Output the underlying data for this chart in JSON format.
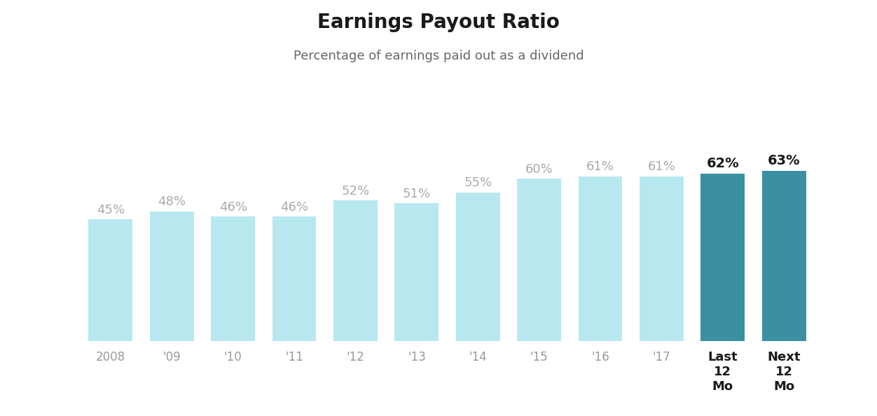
{
  "categories": [
    "2008",
    "'09",
    "'10",
    "'11",
    "'12",
    "'13",
    "'14",
    "'15",
    "'16",
    "'17",
    "Last\n12\nMo",
    "Next\n12\nMo"
  ],
  "values": [
    45,
    48,
    46,
    46,
    52,
    51,
    55,
    60,
    61,
    61,
    62,
    63
  ],
  "labels": [
    "45%",
    "48%",
    "46%",
    "46%",
    "52%",
    "51%",
    "55%",
    "60%",
    "61%",
    "61%",
    "62%",
    "63%"
  ],
  "light_blue": "#b8e8ef",
  "teal": "#3a8fa0",
  "title": "Earnings Payout Ratio",
  "subtitle": "Percentage of earnings paid out as a dividend",
  "title_fontsize": 20,
  "subtitle_fontsize": 13,
  "label_fontsize_light": 13,
  "label_fontsize_dark": 14,
  "ylim": [
    0,
    80
  ],
  "background_color": "#ffffff",
  "label_color_light": "#aaaaaa",
  "label_color_dark": "#1a1a1a",
  "tick_color_normal": "#999999",
  "tick_color_bold": "#1a1a1a",
  "bar_width": 0.72
}
